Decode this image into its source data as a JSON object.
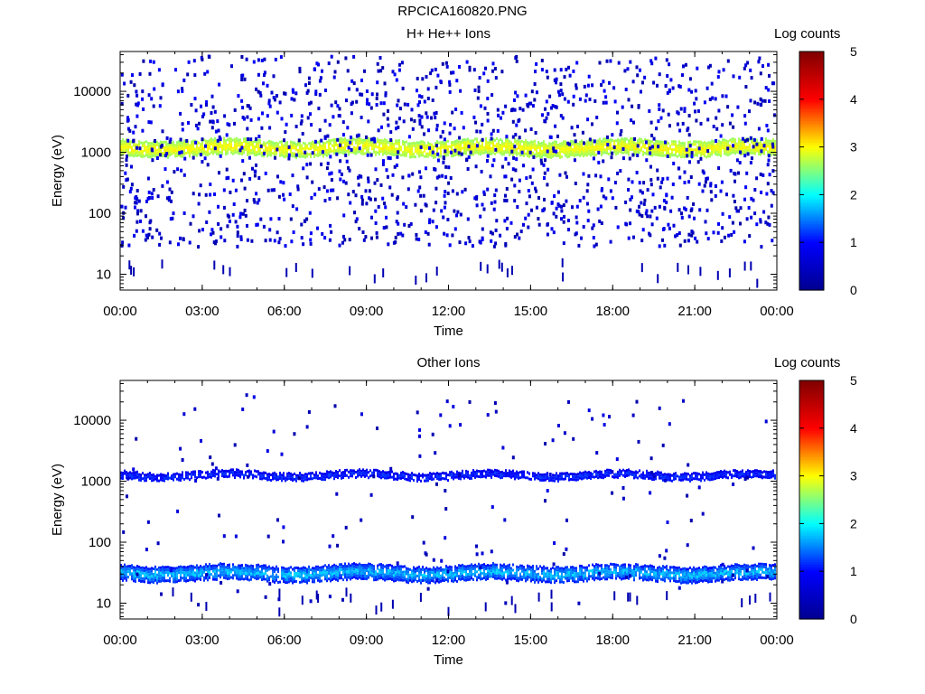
{
  "page_title": "RPCICA160820.PNG",
  "colorbar": {
    "label": "Log counts",
    "ticks": [
      "0",
      "1",
      "2",
      "3",
      "4",
      "5"
    ],
    "range": [
      0,
      5
    ],
    "colormap": [
      "#00008f",
      "#0000ff",
      "#00ffff",
      "#ffff00",
      "#ff0000",
      "#800000"
    ]
  },
  "chart_data": [
    {
      "type": "heatmap",
      "title": "H+ He++ Ions",
      "xlabel": "Time",
      "ylabel": "Energy (eV)",
      "x_ticks": [
        "00:00",
        "03:00",
        "06:00",
        "09:00",
        "12:00",
        "15:00",
        "18:00",
        "21:00",
        "00:00"
      ],
      "x_range_hours": [
        0,
        24
      ],
      "y_scale": "log",
      "y_ticks": [
        "10",
        "100",
        "1000",
        "10000"
      ],
      "y_tick_values": [
        10,
        100,
        1000,
        10000
      ],
      "ylim": [
        5.5,
        45000
      ],
      "z_label": "Log counts",
      "zlim": [
        0,
        5
      ],
      "features": [
        {
          "name": "main band",
          "energy_center_eV": 1250,
          "energy_range_eV": [
            950,
            1600
          ],
          "log_counts": [
            2.3,
            3.1
          ]
        },
        {
          "name": "background",
          "energy_range_eV": [
            30,
            40000
          ],
          "log_counts": [
            0.2,
            1.0
          ]
        }
      ]
    },
    {
      "type": "heatmap",
      "title": "Other Ions",
      "xlabel": "Time",
      "ylabel": "Energy (eV)",
      "x_ticks": [
        "00:00",
        "03:00",
        "06:00",
        "09:00",
        "12:00",
        "15:00",
        "18:00",
        "21:00",
        "00:00"
      ],
      "x_range_hours": [
        0,
        24
      ],
      "y_scale": "log",
      "y_ticks": [
        "10",
        "100",
        "1000",
        "10000"
      ],
      "y_tick_values": [
        10,
        100,
        1000,
        10000
      ],
      "ylim": [
        5.5,
        45000
      ],
      "z_label": "Log counts",
      "zlim": [
        0,
        5
      ],
      "features": [
        {
          "name": "upper band",
          "energy_center_eV": 1250,
          "energy_range_eV": [
            1100,
            1450
          ],
          "log_counts": [
            0.5,
            1.3
          ]
        },
        {
          "name": "lower band",
          "energy_center_eV": 32,
          "energy_range_eV": [
            25,
            42
          ],
          "log_counts": [
            0.6,
            1.9
          ]
        },
        {
          "name": "background",
          "energy_range_eV": [
            10,
            30000
          ],
          "log_counts": [
            0.2,
            0.8
          ]
        }
      ]
    }
  ]
}
